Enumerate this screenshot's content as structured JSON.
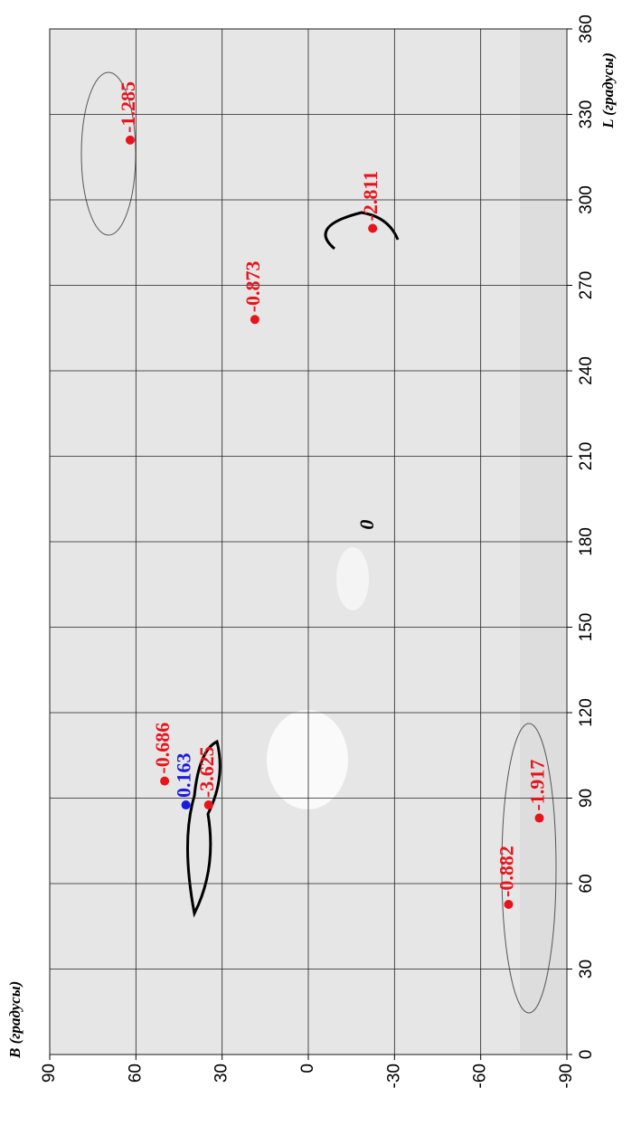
{
  "chart_data": {
    "type": "scatter",
    "xlabel": "L (градусы)",
    "ylabel": "B (градусы)",
    "xlim": [
      0,
      360
    ],
    "xticks": [
      0,
      30,
      60,
      90,
      120,
      150,
      180,
      210,
      240,
      270,
      300,
      330,
      360
    ],
    "ylim": [
      -90,
      90
    ],
    "yticks": [
      90,
      60,
      30,
      0,
      -30,
      -60,
      -90
    ],
    "grid": true,
    "points": [
      {
        "x": 321,
        "y": 62,
        "value": -1.285,
        "color": "#e8141c"
      },
      {
        "x": 290,
        "y": -22.4,
        "value": -2.811,
        "color": "#e8141c"
      },
      {
        "x": 258,
        "y": 18.6,
        "value": -0.873,
        "color": "#e8141c"
      },
      {
        "x": 96,
        "y": 50,
        "value": -0.686,
        "color": "#e8141c"
      },
      {
        "x": 87.6,
        "y": 42.6,
        "value": 0.163,
        "color": "#1a1ae0"
      },
      {
        "x": 87.6,
        "y": 34.7,
        "value": -3.625,
        "color": "#e8141c"
      },
      {
        "x": 52.7,
        "y": -69.7,
        "value": -0.882,
        "color": "#e8141c"
      },
      {
        "x": 83,
        "y": -80.4,
        "value": -1.917,
        "color": "#e8141c"
      }
    ],
    "annotations": [
      {
        "text": "0",
        "x": 186,
        "y": -21
      }
    ]
  }
}
